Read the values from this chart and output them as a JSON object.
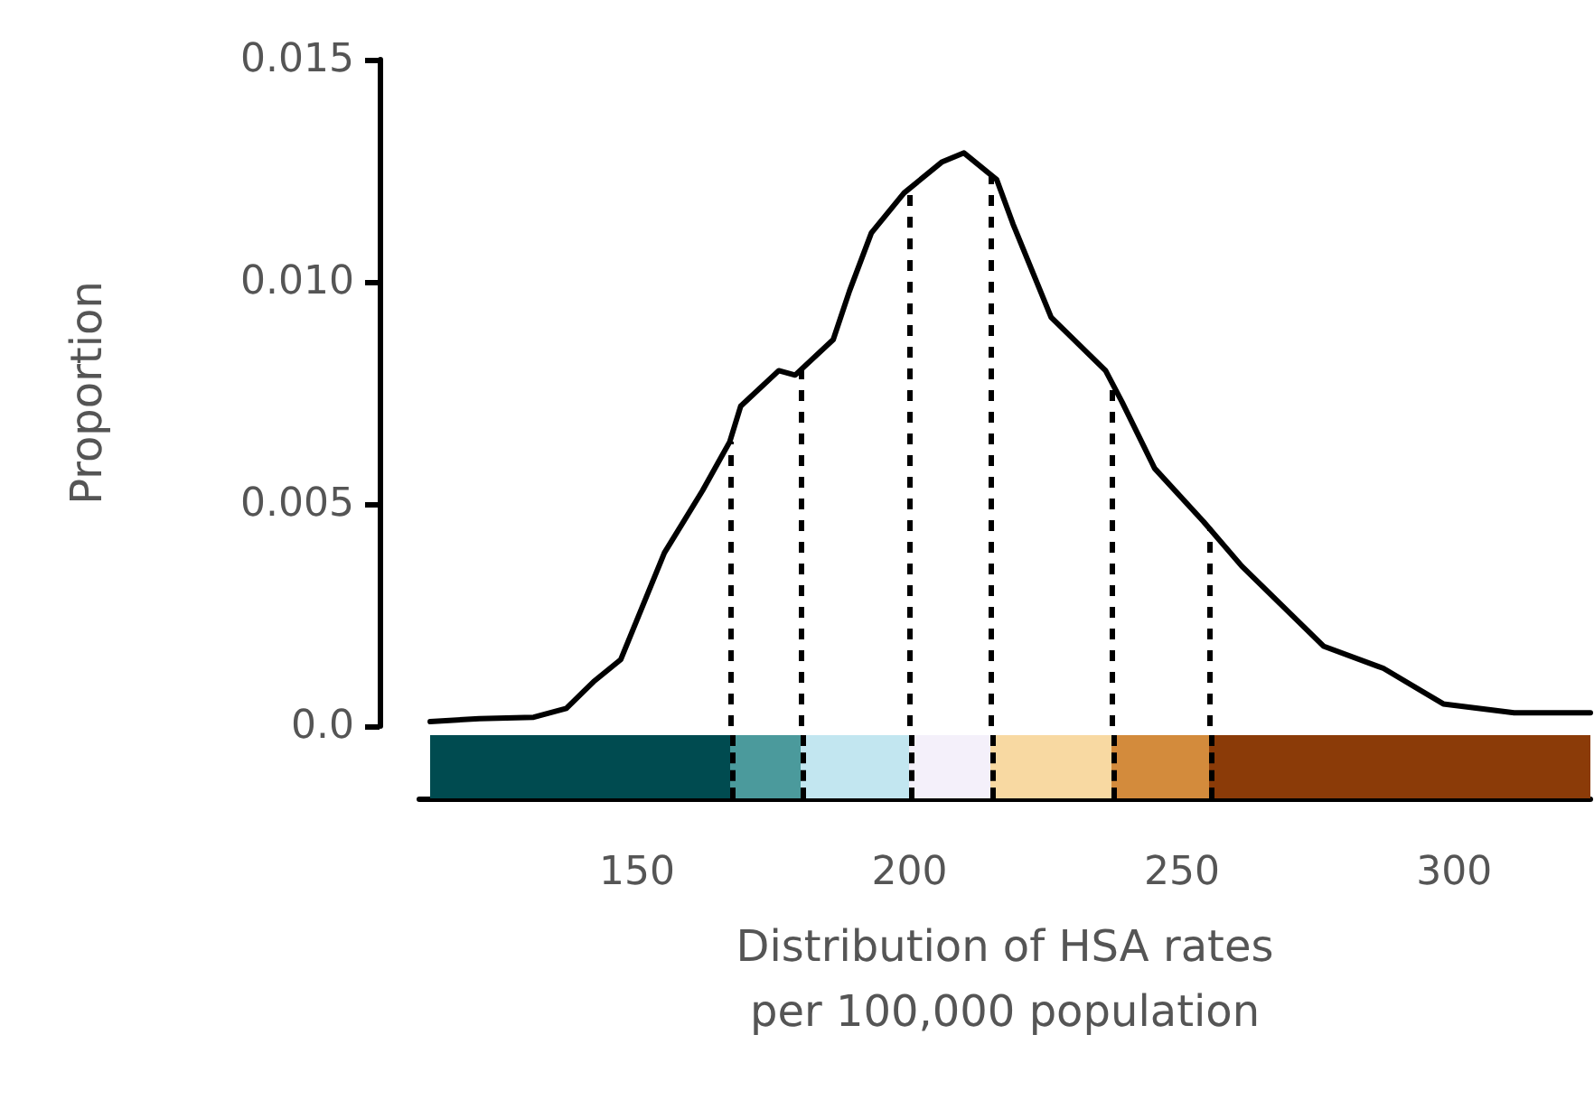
{
  "chart_data": {
    "type": "line",
    "xlabel": "Distribution of HSA rates\nper 100,000 population",
    "ylabel": "Proportion",
    "x": [
      112,
      121,
      131,
      137,
      142,
      147,
      155,
      162,
      167,
      169,
      176,
      179,
      186,
      189,
      193,
      199,
      206,
      210,
      216,
      219,
      226,
      236,
      239,
      245,
      254,
      261,
      276,
      287,
      298,
      311,
      325
    ],
    "series": [
      {
        "color": "#000000",
        "values": [
          0.0001,
          0.00017,
          0.0002,
          0.0004,
          0.001,
          0.0015,
          0.0039,
          0.0053,
          0.0064,
          0.0072,
          0.008,
          0.0079,
          0.0087,
          0.0098,
          0.0111,
          0.012,
          0.0127,
          0.0129,
          0.0123,
          0.0113,
          0.0092,
          0.008,
          0.0073,
          0.0058,
          0.0046,
          0.0036,
          0.0018,
          0.0013,
          0.0005,
          0.0003,
          0.0003
        ]
      }
    ],
    "xlim": [
      110,
      325
    ],
    "xticks": [
      150,
      200,
      250,
      300
    ],
    "ylim": [
      0,
      0.015
    ],
    "yticks": [
      {
        "value": 0,
        "label": "0.0"
      },
      0.005,
      {
        "value": 0.01,
        "label": "0.010"
      },
      {
        "value": 0.015,
        "label": "0.015"
      }
    ],
    "ref_lines": [
      {
        "axis": "x",
        "value": 167,
        "line_style": "dashed"
      },
      {
        "axis": "x",
        "value": 180,
        "line_style": "dashed"
      },
      {
        "axis": "x",
        "value": 200,
        "line_style": "dashed"
      },
      {
        "axis": "x",
        "value": 215,
        "line_style": "dashed"
      },
      {
        "axis": "x",
        "value": 237,
        "line_style": "dashed"
      },
      {
        "axis": "x",
        "value": 255,
        "line_style": "dashed"
      }
    ],
    "grid": false,
    "marker": "none",
    "line_style": "solid"
  }
}
